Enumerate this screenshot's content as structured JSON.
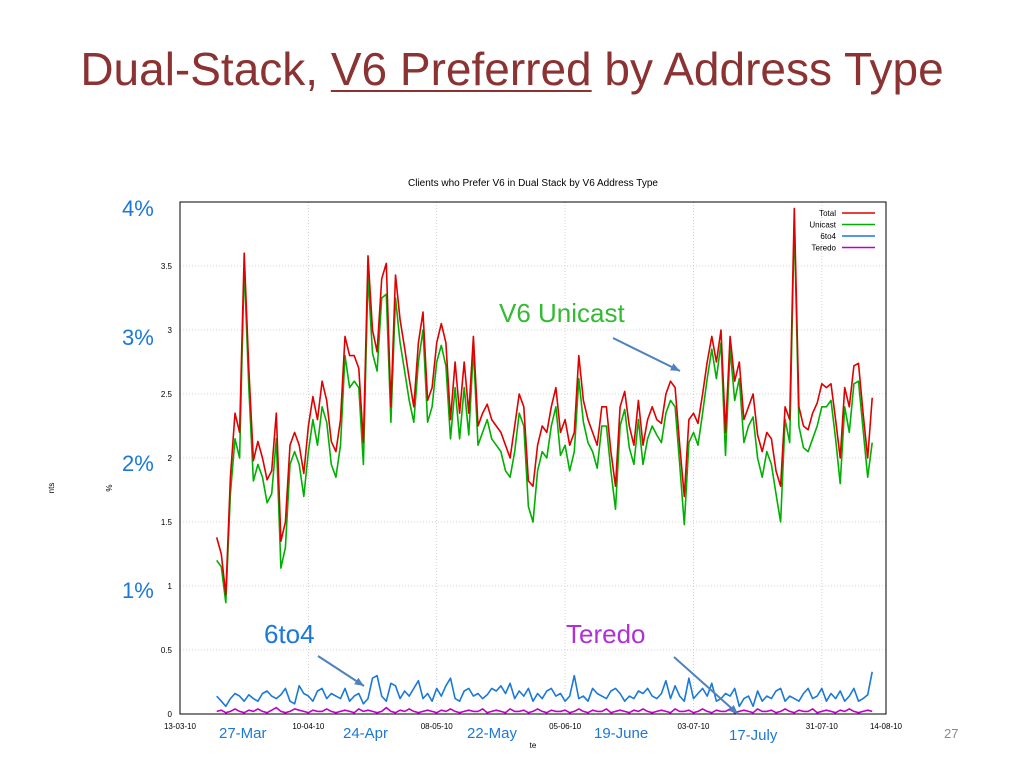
{
  "slide": {
    "title_before": "Dual-Stack, ",
    "title_underlined": "V6 Preferred",
    "title_after": " by Address Type",
    "page_number": "27"
  },
  "annotations": {
    "pct_labels": [
      "4%",
      "3%",
      "2%",
      "1%"
    ],
    "v6_unicast": "V6 Unicast",
    "sixto4": "6to4",
    "teredo": "Teredo",
    "dates": [
      "27-Mar",
      "24-Apr",
      "22-May",
      "19-June",
      "17-July"
    ]
  },
  "chart_data": {
    "type": "line",
    "title": "Clients who Prefer V6 in Dual Stack by V6 Address Type",
    "xlabel": "te",
    "ylabel": "% nts",
    "ylim": [
      0,
      4
    ],
    "xlim": [
      "2010-03-13",
      "2010-08-14"
    ],
    "x_ticks": [
      "13-03-10",
      "10-04-10",
      "08-05-10",
      "05-06-10",
      "03-07-10",
      "31-07-10",
      "14-08-10"
    ],
    "y_ticks": [
      "0",
      "0.5",
      "1",
      "1.5",
      "2",
      "2.5",
      "3",
      "3.5",
      "4"
    ],
    "grid": true,
    "legend_position": "top-right",
    "x_start": "2010-03-21",
    "x_step_days": 1,
    "series": [
      {
        "name": "Total",
        "color": "#e00000",
        "values": [
          1.38,
          1.25,
          0.93,
          1.85,
          2.35,
          2.2,
          3.6,
          2.7,
          1.98,
          2.13,
          2.0,
          1.83,
          1.9,
          2.35,
          1.35,
          1.5,
          2.1,
          2.2,
          2.1,
          1.88,
          2.25,
          2.48,
          2.3,
          2.6,
          2.45,
          2.13,
          2.05,
          2.3,
          2.95,
          2.8,
          2.8,
          2.7,
          2.12,
          3.58,
          3.0,
          2.83,
          3.4,
          3.52,
          2.4,
          3.43,
          3.08,
          2.86,
          2.62,
          2.4,
          2.9,
          3.14,
          2.45,
          2.55,
          2.9,
          3.05,
          2.9,
          2.3,
          2.75,
          2.35,
          2.75,
          2.35,
          2.95,
          2.25,
          2.35,
          2.42,
          2.3,
          2.25,
          2.2,
          2.1,
          2.0,
          2.25,
          2.5,
          2.4,
          1.82,
          1.78,
          2.1,
          2.25,
          2.2,
          2.4,
          2.55,
          2.2,
          2.3,
          2.1,
          2.2,
          2.8,
          2.45,
          2.3,
          2.2,
          2.1,
          2.4,
          2.4,
          2.05,
          1.78,
          2.4,
          2.52,
          2.25,
          2.1,
          2.45,
          2.1,
          2.3,
          2.4,
          2.3,
          2.27,
          2.5,
          2.6,
          2.55,
          2.1,
          1.7,
          2.3,
          2.35,
          2.27,
          2.5,
          2.75,
          2.95,
          2.75,
          3.0,
          2.2,
          2.95,
          2.6,
          2.75,
          2.3,
          2.4,
          2.5,
          2.18,
          2.05,
          2.2,
          2.15,
          1.9,
          1.78,
          2.4,
          2.3,
          3.95,
          2.4,
          2.25,
          2.22,
          2.35,
          2.43,
          2.58,
          2.55,
          2.58,
          2.3,
          2.0,
          2.55,
          2.4,
          2.72,
          2.74,
          2.35,
          2.0,
          2.47
        ]
      },
      {
        "name": "Unicast",
        "color": "#00b000",
        "values": [
          1.2,
          1.15,
          0.87,
          1.72,
          2.15,
          2.0,
          3.5,
          2.55,
          1.82,
          1.95,
          1.85,
          1.65,
          1.72,
          2.15,
          1.14,
          1.3,
          1.95,
          2.05,
          1.95,
          1.7,
          2.05,
          2.3,
          2.1,
          2.4,
          2.28,
          1.95,
          1.85,
          2.1,
          2.8,
          2.55,
          2.6,
          2.55,
          1.95,
          3.42,
          2.82,
          2.68,
          3.25,
          3.28,
          2.28,
          3.25,
          2.9,
          2.68,
          2.45,
          2.28,
          2.75,
          3.0,
          2.28,
          2.4,
          2.75,
          2.88,
          2.72,
          2.15,
          2.55,
          2.15,
          2.55,
          2.18,
          2.85,
          2.1,
          2.2,
          2.3,
          2.15,
          2.1,
          2.05,
          1.9,
          1.85,
          2.05,
          2.35,
          2.25,
          1.62,
          1.5,
          1.9,
          2.05,
          2.0,
          2.25,
          2.4,
          2.02,
          2.1,
          1.9,
          2.05,
          2.62,
          2.28,
          2.12,
          2.05,
          1.92,
          2.25,
          2.25,
          1.9,
          1.6,
          2.25,
          2.38,
          2.08,
          1.95,
          2.3,
          1.95,
          2.15,
          2.25,
          2.18,
          2.12,
          2.35,
          2.45,
          2.4,
          1.95,
          1.48,
          2.12,
          2.2,
          2.1,
          2.35,
          2.62,
          2.85,
          2.62,
          2.9,
          2.02,
          2.85,
          2.45,
          2.62,
          2.12,
          2.25,
          2.32,
          2.0,
          1.85,
          2.05,
          1.95,
          1.72,
          1.5,
          2.3,
          2.12,
          3.85,
          2.25,
          2.08,
          2.05,
          2.15,
          2.25,
          2.4,
          2.4,
          2.45,
          2.15,
          1.8,
          2.4,
          2.2,
          2.58,
          2.6,
          2.22,
          1.85,
          2.12
        ]
      },
      {
        "name": "6to4",
        "color": "#1a78d8",
        "values": [
          0.14,
          0.1,
          0.06,
          0.12,
          0.16,
          0.14,
          0.1,
          0.15,
          0.12,
          0.1,
          0.16,
          0.18,
          0.14,
          0.12,
          0.15,
          0.2,
          0.1,
          0.08,
          0.22,
          0.16,
          0.14,
          0.1,
          0.18,
          0.2,
          0.12,
          0.16,
          0.14,
          0.12,
          0.2,
          0.1,
          0.14,
          0.16,
          0.08,
          0.12,
          0.28,
          0.3,
          0.14,
          0.1,
          0.24,
          0.22,
          0.12,
          0.18,
          0.14,
          0.2,
          0.26,
          0.12,
          0.16,
          0.1,
          0.2,
          0.14,
          0.22,
          0.28,
          0.12,
          0.1,
          0.18,
          0.2,
          0.14,
          0.16,
          0.12,
          0.15,
          0.2,
          0.18,
          0.22,
          0.16,
          0.24,
          0.12,
          0.18,
          0.14,
          0.2,
          0.1,
          0.16,
          0.12,
          0.18,
          0.2,
          0.14,
          0.16,
          0.1,
          0.14,
          0.3,
          0.12,
          0.14,
          0.1,
          0.2,
          0.16,
          0.14,
          0.12,
          0.18,
          0.2,
          0.16,
          0.1,
          0.14,
          0.12,
          0.18,
          0.16,
          0.2,
          0.14,
          0.12,
          0.16,
          0.26,
          0.12,
          0.22,
          0.14,
          0.1,
          0.28,
          0.12,
          0.16,
          0.2,
          0.14,
          0.24,
          0.1,
          0.12,
          0.16,
          0.14,
          0.2,
          0.06,
          0.12,
          0.14,
          0.06,
          0.18,
          0.1,
          0.14,
          0.12,
          0.18,
          0.2,
          0.1,
          0.14,
          0.12,
          0.1,
          0.16,
          0.2,
          0.12,
          0.14,
          0.2,
          0.1,
          0.16,
          0.12,
          0.18,
          0.1,
          0.14,
          0.2,
          0.1,
          0.12,
          0.15,
          0.33
        ]
      },
      {
        "name": "Teredo",
        "color": "#c000c8",
        "values": [
          0.02,
          0.03,
          0.01,
          0.02,
          0.04,
          0.02,
          0.01,
          0.03,
          0.02,
          0.04,
          0.02,
          0.01,
          0.03,
          0.05,
          0.02,
          0.01,
          0.02,
          0.04,
          0.03,
          0.02,
          0.01,
          0.03,
          0.02,
          0.02,
          0.04,
          0.02,
          0.01,
          0.02,
          0.03,
          0.02,
          0.01,
          0.04,
          0.02,
          0.03,
          0.02,
          0.01,
          0.02,
          0.05,
          0.02,
          0.01,
          0.03,
          0.02,
          0.04,
          0.02,
          0.01,
          0.02,
          0.03,
          0.02,
          0.01,
          0.03,
          0.02,
          0.04,
          0.02,
          0.01,
          0.02,
          0.03,
          0.02,
          0.02,
          0.04,
          0.01,
          0.02,
          0.03,
          0.02,
          0.01,
          0.04,
          0.02,
          0.02,
          0.03,
          0.01,
          0.02,
          0.04,
          0.02,
          0.01,
          0.03,
          0.02,
          0.02,
          0.03,
          0.01,
          0.02,
          0.04,
          0.02,
          0.01,
          0.03,
          0.02,
          0.02,
          0.04,
          0.01,
          0.02,
          0.03,
          0.02,
          0.01,
          0.03,
          0.02,
          0.04,
          0.02,
          0.01,
          0.02,
          0.03,
          0.02,
          0.01,
          0.04,
          0.02,
          0.02,
          0.03,
          0.01,
          0.02,
          0.04,
          0.02,
          0.01,
          0.03,
          0.02,
          0.02,
          0.04,
          0.01,
          0.02,
          0.03,
          0.02,
          0.01,
          0.04,
          0.02,
          0.02,
          0.03,
          0.01,
          0.02,
          0.04,
          0.02,
          0.01,
          0.03,
          0.02,
          0.02,
          0.04,
          0.01,
          0.02,
          0.03,
          0.02,
          0.01,
          0.03,
          0.02,
          0.04,
          0.02,
          0.01,
          0.02,
          0.03,
          0.02
        ]
      }
    ]
  }
}
